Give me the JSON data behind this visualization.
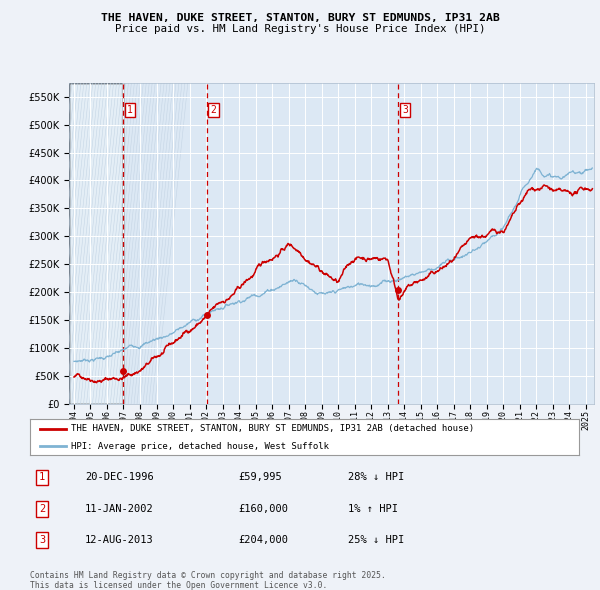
{
  "title_line1": "THE HAVEN, DUKE STREET, STANTON, BURY ST EDMUNDS, IP31 2AB",
  "title_line2": "Price paid vs. HM Land Registry's House Price Index (HPI)",
  "ylim": [
    0,
    575000
  ],
  "yticks": [
    0,
    50000,
    100000,
    150000,
    200000,
    250000,
    300000,
    350000,
    400000,
    450000,
    500000,
    550000
  ],
  "ytick_labels": [
    "£0",
    "£50K",
    "£100K",
    "£150K",
    "£200K",
    "£250K",
    "£300K",
    "£350K",
    "£400K",
    "£450K",
    "£500K",
    "£550K"
  ],
  "xlim_start": 1993.7,
  "xlim_end": 2025.5,
  "sale_dates": [
    1996.97,
    2002.03,
    2013.62
  ],
  "sale_prices": [
    59995,
    160000,
    204000
  ],
  "sale_labels": [
    "1",
    "2",
    "3"
  ],
  "sale_date_strs": [
    "20-DEC-1996",
    "11-JAN-2002",
    "12-AUG-2013"
  ],
  "sale_price_strs": [
    "£59,995",
    "£160,000",
    "£204,000"
  ],
  "sale_hpi_strs": [
    "28% ↓ HPI",
    "1% ↑ HPI",
    "25% ↓ HPI"
  ],
  "legend_line1": "THE HAVEN, DUKE STREET, STANTON, BURY ST EDMUNDS, IP31 2AB (detached house)",
  "legend_line2": "HPI: Average price, detached house, West Suffolk",
  "red_line_color": "#cc0000",
  "blue_line_color": "#7fb3d3",
  "footnote": "Contains HM Land Registry data © Crown copyright and database right 2025.\nThis data is licensed under the Open Government Licence v3.0.",
  "bg_color": "#eef2f8",
  "plot_bg_color": "#dce8f4",
  "hatch_color": "#c8d8e8"
}
